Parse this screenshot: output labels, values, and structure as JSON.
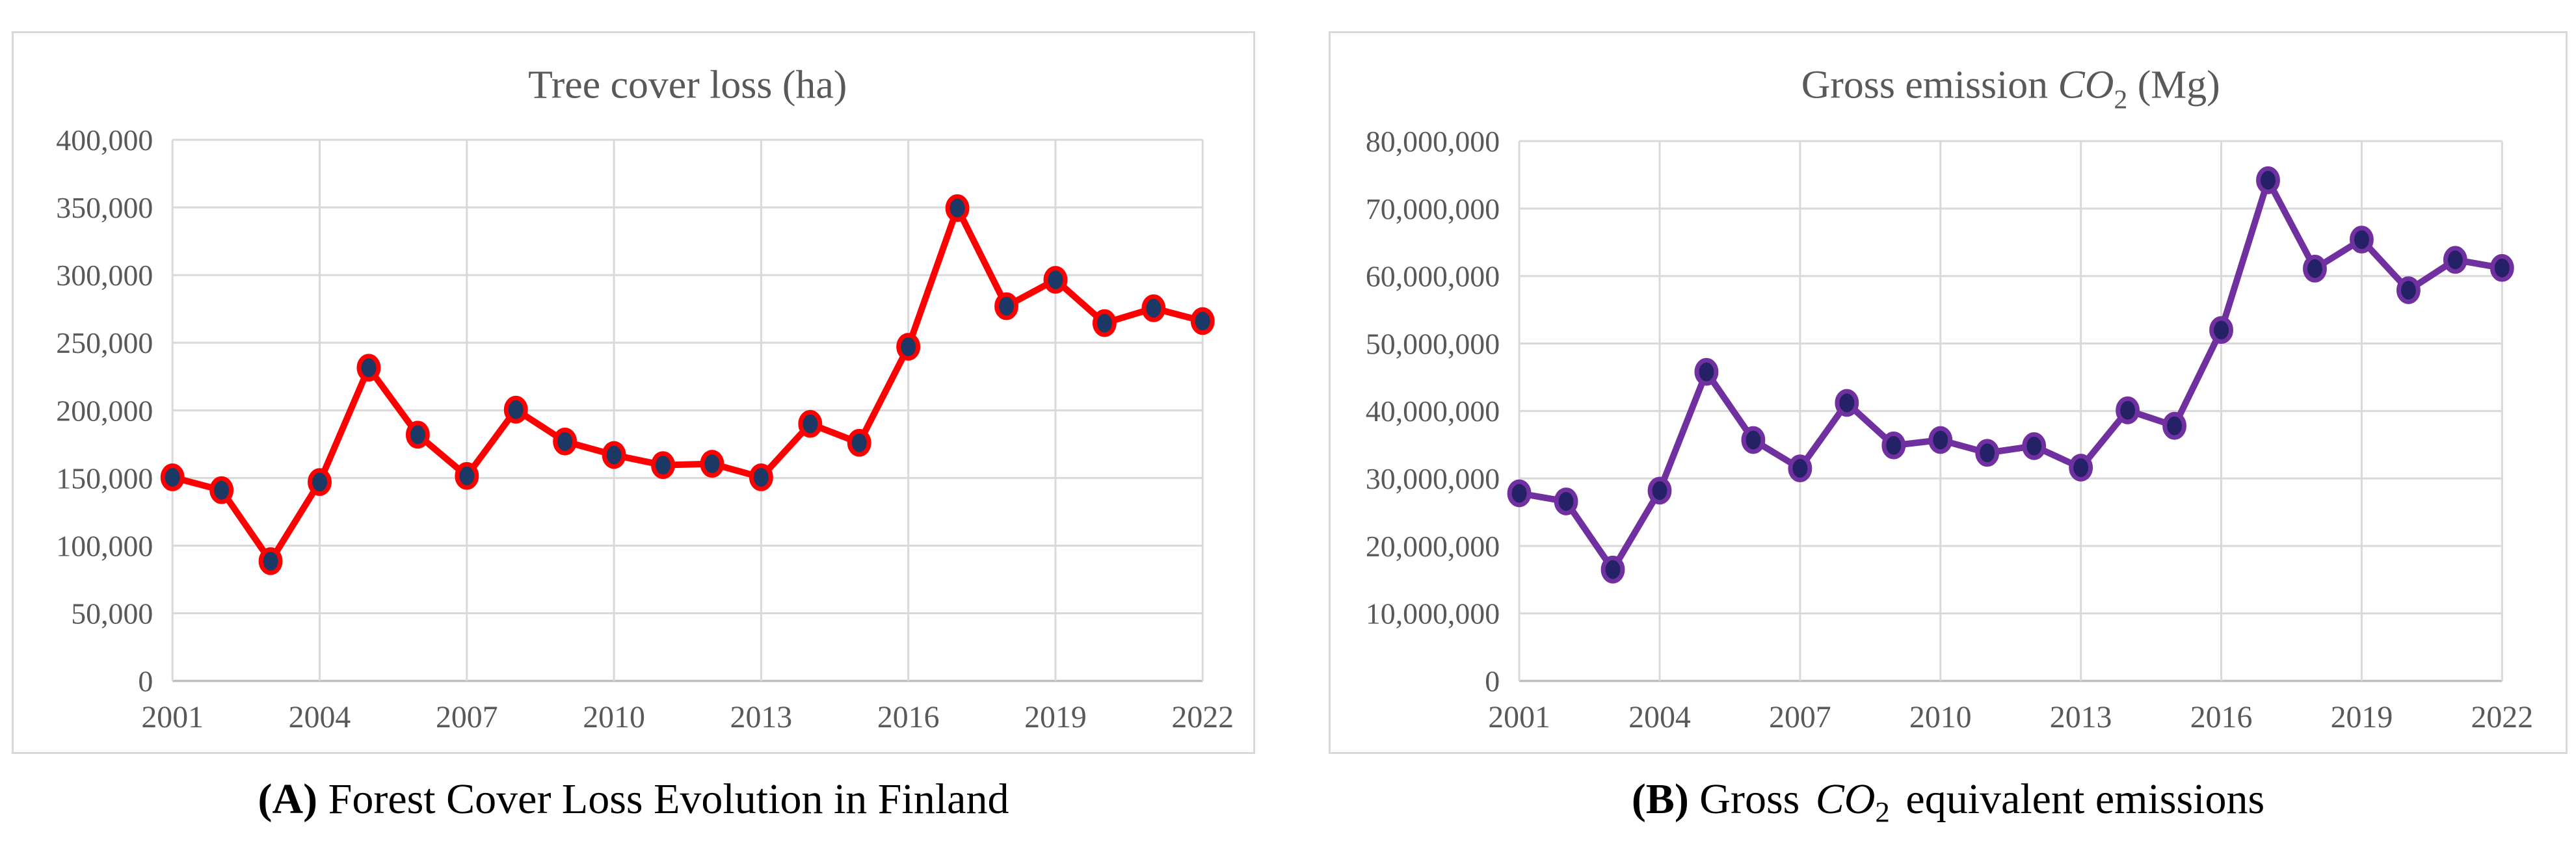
{
  "figure": {
    "background": "#ffffff",
    "panel_border_color": "#d9d9d9",
    "grid_color": "#d9d9d9",
    "axis_line_color": "#bfbfbf",
    "tick_label_color": "#595959",
    "title_color": "#595959",
    "caption_color": "#000000"
  },
  "chart_data": [
    {
      "type": "line",
      "title": "Tree cover loss (ha)",
      "title_parts": [
        {
          "t": "Tree cover loss (ha)",
          "s": "normal"
        }
      ],
      "caption": "(A) Forest Cover Loss Evolution in Finland",
      "caption_parts": [
        {
          "t": "(A) ",
          "s": "bold"
        },
        {
          "t": "Forest Cover Loss Evolution in Finland",
          "s": "normal"
        }
      ],
      "x": [
        2001,
        2002,
        2003,
        2004,
        2005,
        2006,
        2007,
        2008,
        2009,
        2010,
        2011,
        2012,
        2013,
        2014,
        2015,
        2016,
        2017,
        2018,
        2019,
        2020,
        2021,
        2022
      ],
      "xtick_labels": [
        "2001",
        "2004",
        "2007",
        "2010",
        "2013",
        "2016",
        "2019",
        "2022"
      ],
      "xtick_indices": [
        0,
        3,
        6,
        9,
        12,
        15,
        18,
        21
      ],
      "series": [
        {
          "name": "Tree cover loss (ha)",
          "line_color": "#ff0000",
          "marker_color": "#1c3966",
          "values": [
            150500,
            141000,
            88500,
            147000,
            231500,
            182000,
            151500,
            200500,
            177000,
            167000,
            159500,
            160500,
            150500,
            190000,
            176000,
            247000,
            349500,
            277000,
            296500,
            264500,
            275500,
            266000
          ]
        }
      ],
      "ylim": [
        0,
        400000
      ],
      "ytick_values": [
        400000,
        350000,
        300000,
        250000,
        200000,
        150000,
        100000,
        50000,
        0
      ],
      "ytick_labels": [
        "400,000",
        "350,000",
        "300,000",
        "250,000",
        "200,000",
        "150,000",
        "100,000",
        "50,000",
        "0"
      ],
      "grid": true,
      "legend_position": "none"
    },
    {
      "type": "line",
      "title": "Gross emission CO2 (Mg)",
      "title_parts": [
        {
          "t": "Gross emission ",
          "s": "normal"
        },
        {
          "t": "CO",
          "s": "italic"
        },
        {
          "t": "2",
          "s": "sub"
        },
        {
          "t": " (Mg)",
          "s": "normal"
        }
      ],
      "caption": "(B) Gross CO2 equivalent emissions",
      "caption_parts": [
        {
          "t": "(B) ",
          "s": "bold"
        },
        {
          "t": "Gross ",
          "s": "normal"
        },
        {
          "t": "CO",
          "s": "italic"
        },
        {
          "t": "2",
          "s": "sub"
        },
        {
          "t": " equivalent emissions",
          "s": "normal"
        }
      ],
      "x": [
        2001,
        2002,
        2003,
        2004,
        2005,
        2006,
        2007,
        2008,
        2009,
        2010,
        2011,
        2012,
        2013,
        2014,
        2015,
        2016,
        2017,
        2018,
        2019,
        2020,
        2021,
        2022
      ],
      "xtick_labels": [
        "2001",
        "2004",
        "2007",
        "2010",
        "2013",
        "2016",
        "2019",
        "2022"
      ],
      "xtick_indices": [
        0,
        3,
        6,
        9,
        12,
        15,
        18,
        21
      ],
      "series": [
        {
          "name": "Gross emission CO2 (Mg)",
          "line_color": "#7030a0",
          "marker_color": "#252166",
          "values": [
            27800000,
            26600000,
            16500000,
            28200000,
            45800000,
            35700000,
            31500000,
            41200000,
            34900000,
            35700000,
            33800000,
            34800000,
            31600000,
            40100000,
            37800000,
            52000000,
            74200000,
            61100000,
            65400000,
            57900000,
            62400000,
            61200000
          ]
        }
      ],
      "ylim": [
        0,
        80000000
      ],
      "ytick_values": [
        80000000,
        70000000,
        60000000,
        50000000,
        40000000,
        30000000,
        20000000,
        10000000,
        0
      ],
      "ytick_labels": [
        "80,000,000",
        "70,000,000",
        "60,000,000",
        "50,000,000",
        "40,000,000",
        "30,000,000",
        "20,000,000",
        "10,000,000",
        "0"
      ],
      "grid": true,
      "legend_position": "none"
    }
  ]
}
